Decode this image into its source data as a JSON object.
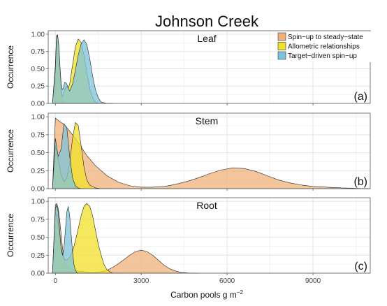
{
  "chart_data": {
    "type": "area",
    "title": "Johnson Creek",
    "xlabel": "Carbon pools g m",
    "xlabel_superscript": "−2",
    "ylabel": "Occurrence",
    "xlim": [
      -250,
      11000
    ],
    "ylim": [
      0,
      1.05
    ],
    "x_ticks": [
      0,
      3000,
      6000,
      9000
    ],
    "x_tick_labels": [
      "0",
      "3000",
      "6000",
      "9000"
    ],
    "y_ticks": [
      0,
      0.25,
      0.5,
      0.75,
      1.0
    ],
    "y_tick_labels": [
      "0.00",
      "0.25",
      "0.50",
      "0.75",
      "1.00"
    ],
    "grid": true,
    "legend_position": "top-right",
    "legend": [
      {
        "name": "Spin−up to steady−state",
        "color": "#f0b27a"
      },
      {
        "name": "Allometric relationships",
        "color": "#f2e02a"
      },
      {
        "name": "Target−driven spin−up",
        "color": "#7dc3d9"
      }
    ],
    "panels": [
      {
        "title": "Leaf",
        "tag": "(a)",
        "series": [
          {
            "name": "Spin−up to steady−state",
            "color": "#f0b27a",
            "x": [
              -100,
              0,
              40,
              80,
              120,
              160,
              200,
              240,
              280,
              320,
              360,
              400,
              450,
              500,
              600,
              700,
              800,
              900,
              1000,
              1100,
              1200,
              1300,
              1400,
              1500,
              1600,
              1800,
              2000
            ],
            "y": [
              0,
              0.55,
              0.98,
              0.99,
              0.8,
              0.45,
              0.15,
              0.03,
              0.01,
              0.0,
              0.0,
              0.0,
              0.0,
              0.0,
              0.0,
              0.0,
              0.0,
              0.0,
              0.0,
              0.0,
              0.0,
              0.0,
              0.0,
              0.0,
              0.0,
              0.0,
              0.0
            ]
          },
          {
            "name": "Allometric relationships",
            "color": "#f2e02a",
            "x": [
              -100,
              0,
              40,
              80,
              120,
              160,
              200,
              240,
              280,
              320,
              360,
              400,
              450,
              500,
              600,
              700,
              800,
              900,
              1000,
              1100,
              1200,
              1300,
              1400,
              1500,
              1600,
              1800,
              2000
            ],
            "y": [
              0,
              0.45,
              0.93,
              0.97,
              0.8,
              0.5,
              0.22,
              0.1,
              0.12,
              0.2,
              0.22,
              0.25,
              0.22,
              0.28,
              0.55,
              0.82,
              0.93,
              0.88,
              0.7,
              0.45,
              0.22,
              0.08,
              0.02,
              0.0,
              0.0,
              0.0,
              0.0
            ]
          },
          {
            "name": "Target−driven spin−up",
            "color": "#7dc3d9",
            "x": [
              -100,
              0,
              40,
              80,
              120,
              160,
              200,
              240,
              280,
              320,
              360,
              400,
              450,
              500,
              600,
              700,
              800,
              900,
              1000,
              1100,
              1200,
              1300,
              1400,
              1500,
              1600,
              1800,
              2000
            ],
            "y": [
              0,
              0.5,
              0.96,
              0.98,
              0.85,
              0.55,
              0.3,
              0.2,
              0.22,
              0.3,
              0.3,
              0.28,
              0.22,
              0.18,
              0.28,
              0.48,
              0.7,
              0.86,
              0.92,
              0.85,
              0.65,
              0.4,
              0.2,
              0.08,
              0.02,
              0.0,
              0.0
            ]
          }
        ]
      },
      {
        "title": "Stem",
        "tag": "(b)",
        "series": [
          {
            "name": "Spin−up to steady−state",
            "color": "#f0b27a",
            "x": [
              -100,
              0,
              100,
              200,
              300,
              400,
              500,
              700,
              900,
              1100,
              1400,
              1800,
              2200,
              2600,
              3000,
              3400,
              3800,
              4200,
              4600,
              5000,
              5400,
              5800,
              6200,
              6600,
              7000,
              7400,
              7800,
              8200,
              8600,
              9000,
              9500,
              10000,
              10500,
              11000
            ],
            "y": [
              0,
              0.98,
              0.95,
              0.92,
              0.9,
              0.85,
              0.8,
              0.7,
              0.58,
              0.46,
              0.32,
              0.18,
              0.09,
              0.04,
              0.02,
              0.02,
              0.03,
              0.06,
              0.1,
              0.15,
              0.21,
              0.26,
              0.29,
              0.28,
              0.24,
              0.18,
              0.12,
              0.08,
              0.05,
              0.03,
              0.02,
              0.01,
              0.005,
              0.0
            ]
          },
          {
            "name": "Allometric relationships",
            "color": "#f2e02a",
            "x": [
              -100,
              0,
              100,
              200,
              300,
              400,
              500,
              600,
              700,
              800,
              900,
              1000,
              1100,
              1200,
              1400,
              1600,
              1800,
              2000
            ],
            "y": [
              0,
              0.6,
              0.4,
              0.2,
              0.1,
              0.15,
              0.35,
              0.7,
              0.92,
              0.88,
              0.6,
              0.3,
              0.12,
              0.05,
              0.01,
              0.0,
              0.0,
              0.0
            ]
          },
          {
            "name": "Target−driven spin−up",
            "color": "#7dc3d9",
            "x": [
              -100,
              0,
              100,
              200,
              300,
              400,
              500,
              600,
              700,
              800,
              900,
              1000
            ],
            "y": [
              0,
              0.7,
              0.45,
              0.55,
              0.9,
              0.85,
              0.45,
              0.15,
              0.04,
              0.01,
              0.0,
              0.0
            ]
          }
        ]
      },
      {
        "title": "Root",
        "tag": "(c)",
        "series": [
          {
            "name": "Spin−up to steady−state",
            "color": "#f0b27a",
            "x": [
              -100,
              0,
              50,
              100,
              150,
              200,
              250,
              300,
              400,
              500,
              600,
              800,
              1000,
              1200,
              1400,
              1600,
              1800,
              2000,
              2200,
              2400,
              2600,
              2800,
              3000,
              3200,
              3400,
              3600,
              3800,
              4000,
              4200,
              4400,
              4600,
              4800,
              5000
            ],
            "y": [
              0,
              0.95,
              0.97,
              0.9,
              0.75,
              0.55,
              0.35,
              0.2,
              0.1,
              0.06,
              0.05,
              0.03,
              0.02,
              0.01,
              0.01,
              0.02,
              0.04,
              0.08,
              0.13,
              0.19,
              0.25,
              0.3,
              0.32,
              0.3,
              0.25,
              0.18,
              0.11,
              0.06,
              0.03,
              0.01,
              0.005,
              0.0,
              0.0
            ]
          },
          {
            "name": "Allometric relationships",
            "color": "#f2e02a",
            "x": [
              -100,
              0,
              100,
              200,
              300,
              400,
              500,
              600,
              700,
              800,
              900,
              1000,
              1100,
              1200,
              1300,
              1400,
              1500,
              1600,
              1700,
              1800,
              1900,
              2000,
              2200,
              2400
            ],
            "y": [
              0,
              0.85,
              0.7,
              0.35,
              0.2,
              0.18,
              0.22,
              0.3,
              0.45,
              0.62,
              0.8,
              0.93,
              0.97,
              0.93,
              0.8,
              0.6,
              0.4,
              0.25,
              0.12,
              0.05,
              0.02,
              0.0,
              0.0,
              0.0
            ]
          },
          {
            "name": "Target−driven spin−up",
            "color": "#7dc3d9",
            "x": [
              -100,
              0,
              50,
              100,
              150,
              200,
              250,
              300,
              350,
              400,
              450,
              500,
              550,
              600,
              650,
              700,
              750,
              800
            ],
            "y": [
              0,
              0.9,
              0.95,
              0.85,
              0.6,
              0.35,
              0.25,
              0.35,
              0.6,
              0.85,
              0.93,
              0.8,
              0.55,
              0.3,
              0.12,
              0.04,
              0.01,
              0.0
            ]
          }
        ]
      }
    ]
  }
}
